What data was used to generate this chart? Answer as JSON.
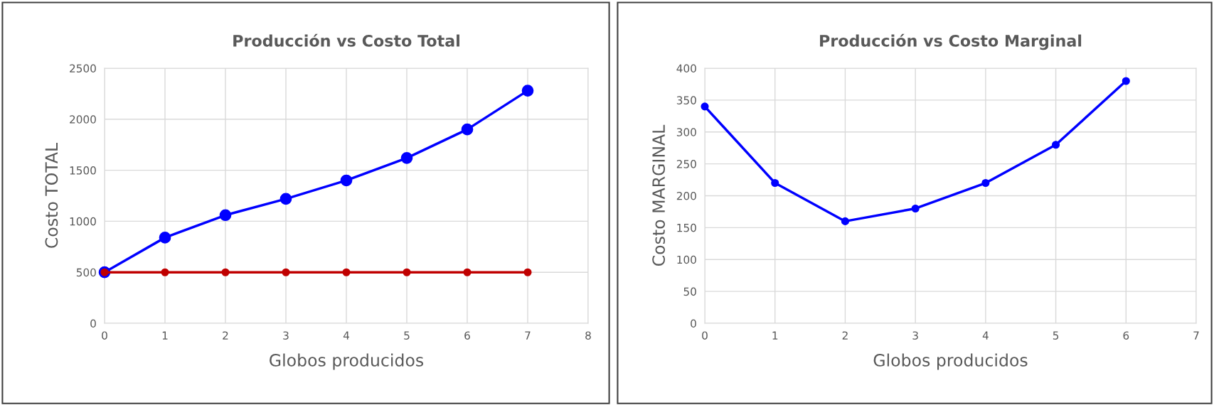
{
  "chart_data": [
    {
      "type": "line",
      "title": "Producción vs Costo Total",
      "xlabel": "Globos producidos",
      "ylabel": "Costo TOTAL",
      "x": [
        0,
        1,
        2,
        3,
        4,
        5,
        6,
        7
      ],
      "series": [
        {
          "color": "#0000ff",
          "values": [
            500,
            840,
            1060,
            1220,
            1400,
            1620,
            1900,
            2280
          ]
        },
        {
          "color": "#c00000",
          "values": [
            500,
            500,
            500,
            500,
            500,
            500,
            500,
            500
          ]
        }
      ],
      "xlim": [
        0,
        8
      ],
      "xticks": [
        0,
        1,
        2,
        3,
        4,
        5,
        6,
        7,
        8
      ],
      "ylim": [
        0,
        2500
      ],
      "yticks": [
        0,
        500,
        1000,
        1500,
        2000,
        2500
      ],
      "grid": true,
      "marker": "circle",
      "line_style": "solid"
    },
    {
      "type": "line",
      "title": "Producción vs Costo Marginal",
      "xlabel": "Globos producidos",
      "ylabel": "Costo MARGINAL",
      "x": [
        0,
        1,
        2,
        3,
        4,
        5,
        6
      ],
      "series": [
        {
          "color": "#0000ff",
          "values": [
            340,
            220,
            160,
            180,
            220,
            280,
            380
          ]
        }
      ],
      "xlim": [
        0,
        7
      ],
      "xticks": [
        0,
        1,
        2,
        3,
        4,
        5,
        6,
        7
      ],
      "ylim": [
        0,
        400
      ],
      "yticks": [
        0,
        50,
        100,
        150,
        200,
        250,
        300,
        350,
        400
      ],
      "grid": true,
      "marker": "circle",
      "line_style": "solid"
    }
  ]
}
